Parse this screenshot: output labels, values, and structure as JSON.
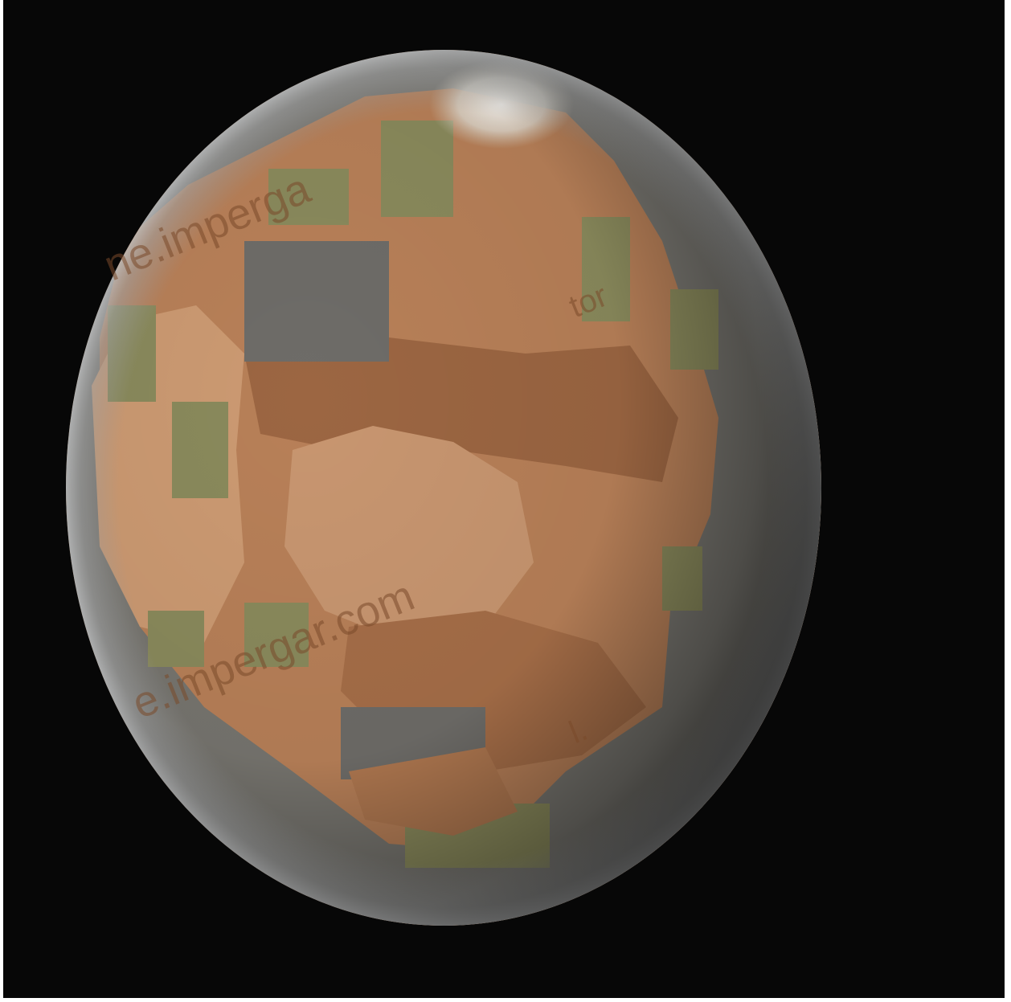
{
  "image": {
    "subject": "planet-mars-like",
    "colors": {
      "background": "#070707",
      "surface_light": "#c8946c",
      "surface_mid": "#b07a52",
      "surface_dark": "#8a5a3c",
      "green_patch": "#8a8a5c",
      "gray_patch": "#6e6c68",
      "polar_cap": "#e8e4dc",
      "limb_haze": "#9a9c9e"
    }
  },
  "watermarks": [
    "ne.imperga",
    "e.impergar.com",
    "tor",
    "l."
  ]
}
